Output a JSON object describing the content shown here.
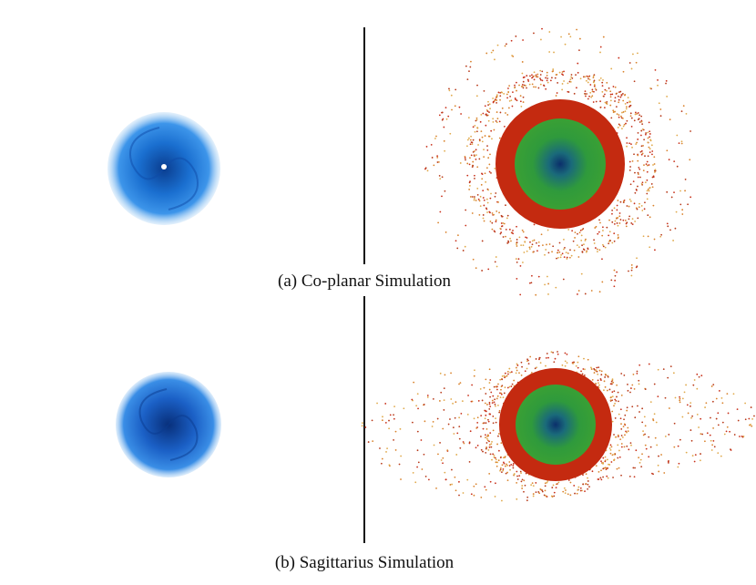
{
  "figure": {
    "panels": [
      {
        "caption": "(a) Co-planar Simulation"
      },
      {
        "caption": "(b) Sagittarius Simulation"
      }
    ]
  }
}
